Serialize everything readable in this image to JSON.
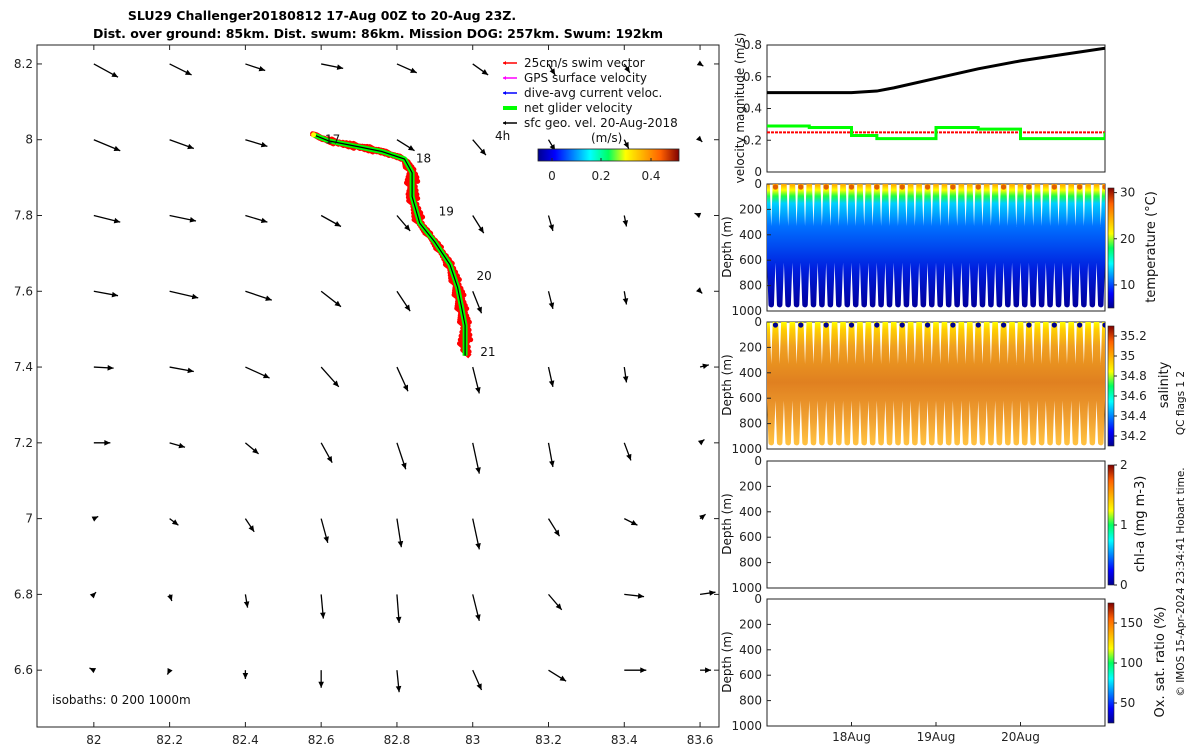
{
  "title": {
    "line1": "SLU29 Challenger20180812 17-Aug 00Z to 20-Aug 23Z.",
    "line2": "Dist. over ground: 85km. Dist. swum: 86km. Mission DOG: 257km. Swum: 192km"
  },
  "legend": {
    "items": [
      {
        "label": "25cm/s swim vector",
        "color": "#ff0000"
      },
      {
        "label": "GPS surface velocity",
        "color": "#ff00ff"
      },
      {
        "label": "dive-avg current veloc.",
        "color": "#0000ff"
      },
      {
        "label": "net glider velocity",
        "color": "#00ff00"
      },
      {
        "label": "sfc geo. vel. 20-Aug-2018",
        "color": "#000000"
      }
    ]
  },
  "map_texts": {
    "colorbar_unit": "(m/s)",
    "colorbar_ticks": [
      "0",
      "0.2",
      "0.4"
    ],
    "time_scale_label": "4h",
    "isobaths": "isobaths: 0   200  1000m",
    "day_labels": [
      "17",
      "18",
      "19",
      "20",
      "21"
    ]
  },
  "colors": {
    "track_red": "#ff0000",
    "net_green": "#00ff00",
    "track_black": "#000000",
    "arrows": "#000000"
  },
  "chart_data": [
    {
      "type": "line",
      "name": "glider-track-map",
      "xlabel": "",
      "ylabel": "",
      "xlim": [
        81.85,
        83.65
      ],
      "ylim": [
        6.45,
        8.25
      ],
      "xticks": [
        "82",
        "82.2",
        "82.4",
        "82.6",
        "82.8",
        "83",
        "83.2",
        "83.4",
        "83.6"
      ],
      "yticks": [
        "8.2",
        "8",
        "7.8",
        "7.6",
        "7.4",
        "7.2",
        "7",
        "6.8",
        "6.6"
      ],
      "track": {
        "x": [
          82.58,
          82.62,
          82.7,
          82.76,
          82.82,
          82.84,
          82.84,
          82.86,
          82.9,
          82.94,
          82.96,
          82.97,
          82.98,
          82.98
        ],
        "y": [
          8.013,
          7.997,
          7.981,
          7.969,
          7.949,
          7.913,
          7.85,
          7.78,
          7.73,
          7.67,
          7.61,
          7.56,
          7.51,
          7.43
        ]
      },
      "day_markers": [
        {
          "label": "17",
          "x": 82.61,
          "y": 8.0
        },
        {
          "label": "18",
          "x": 82.85,
          "y": 7.95
        },
        {
          "label": "19",
          "x": 82.91,
          "y": 7.81
        },
        {
          "label": "20",
          "x": 83.01,
          "y": 7.64
        },
        {
          "label": "21",
          "x": 83.02,
          "y": 7.44
        }
      ],
      "vector_grid": {
        "lon": [
          82.0,
          82.2,
          82.4,
          82.6,
          82.8,
          83.0,
          83.2,
          83.4,
          83.6
        ],
        "lat": [
          8.2,
          8.0,
          7.8,
          7.6,
          7.4,
          7.2,
          7.0,
          6.8,
          6.6
        ],
        "u": [
          [
            0.22,
            0.2,
            0.18,
            0.2,
            0.18,
            0.14,
            0.06,
            0.05,
            0.03
          ],
          [
            0.24,
            0.22,
            0.2,
            0.2,
            0.16,
            0.12,
            0.06,
            0.04,
            0.02
          ],
          [
            0.24,
            0.24,
            0.2,
            0.18,
            0.12,
            0.1,
            0.04,
            0.02,
            -0.05
          ],
          [
            0.22,
            0.26,
            0.24,
            0.18,
            0.12,
            0.08,
            0.04,
            0.02,
            0.02
          ],
          [
            0.18,
            0.22,
            0.22,
            0.16,
            0.1,
            0.06,
            0.04,
            0.02,
            0.08
          ],
          [
            0.15,
            0.14,
            0.12,
            0.1,
            0.08,
            0.06,
            0.04,
            0.06,
            0.04
          ],
          [
            0.04,
            0.08,
            0.08,
            0.06,
            0.04,
            0.06,
            0.1,
            0.12,
            0.05
          ],
          [
            0.02,
            0.02,
            0.02,
            0.02,
            0.02,
            0.06,
            0.12,
            0.18,
            0.14
          ],
          [
            -0.04,
            -0.02,
            0.0,
            0.0,
            0.02,
            0.08,
            0.16,
            0.2,
            0.1
          ]
        ],
        "v": [
          [
            -0.12,
            -0.1,
            -0.06,
            -0.04,
            -0.08,
            -0.1,
            -0.1,
            -0.08,
            -0.02
          ],
          [
            -0.1,
            -0.08,
            -0.06,
            -0.04,
            -0.1,
            -0.14,
            -0.1,
            -0.08,
            -0.02
          ],
          [
            -0.06,
            -0.05,
            -0.06,
            -0.1,
            -0.14,
            -0.16,
            -0.14,
            -0.1,
            0.02
          ],
          [
            -0.04,
            -0.06,
            -0.08,
            -0.14,
            -0.18,
            -0.2,
            -0.16,
            -0.12,
            -0.02
          ],
          [
            -0.01,
            -0.04,
            -0.1,
            -0.18,
            -0.22,
            -0.24,
            -0.18,
            -0.14,
            0.02
          ],
          [
            0.0,
            -0.04,
            -0.1,
            -0.18,
            -0.24,
            -0.28,
            -0.22,
            -0.16,
            0.03
          ],
          [
            0.02,
            -0.06,
            -0.12,
            -0.22,
            -0.26,
            -0.28,
            -0.16,
            -0.06,
            0.04
          ],
          [
            0.02,
            -0.06,
            -0.12,
            -0.22,
            -0.26,
            -0.24,
            -0.14,
            -0.02,
            0.02
          ],
          [
            0.02,
            -0.04,
            -0.08,
            -0.16,
            -0.2,
            -0.18,
            -0.1,
            0.0,
            0.0
          ]
        ]
      }
    },
    {
      "type": "line",
      "name": "velocity-magnitude",
      "ylabel": "velocity magnitude (m/s)",
      "xlabel": "",
      "ylim": [
        0,
        0.8
      ],
      "yticks": [
        "0",
        "0.2",
        "0.4",
        "0.6",
        "0.8"
      ],
      "x": [
        0,
        0.5,
        1.0,
        1.3,
        1.5,
        2.0,
        2.5,
        3.0,
        3.5,
        4.0
      ],
      "series": [
        {
          "values": [
            0.5,
            0.5,
            0.5,
            0.51,
            0.53,
            0.59,
            0.65,
            0.7,
            0.74,
            0.78
          ],
          "color": "#000000"
        },
        {
          "values": [
            0.25,
            0.25,
            0.25,
            0.25,
            0.25,
            0.25,
            0.25,
            0.25,
            0.25,
            0.25
          ],
          "color": "#ff0000"
        },
        {
          "values": [
            0.29,
            0.28,
            0.23,
            0.21,
            0.21,
            0.28,
            0.27,
            0.21,
            0.21,
            0.25
          ],
          "color": "#00ff00"
        }
      ]
    },
    {
      "type": "heatmap",
      "name": "temperature-section",
      "ylabel": "Depth (m)",
      "colorbar_label": "temperature (°C)",
      "colorbar_ticks": [
        "30",
        "20",
        "10"
      ],
      "colorbar_range": [
        5,
        31
      ],
      "ylim": [
        0,
        1000
      ],
      "yticks": [
        "0",
        "200",
        "400",
        "600",
        "800",
        "1000"
      ],
      "dives": 40,
      "max_depth": 950
    },
    {
      "type": "heatmap",
      "name": "salinity-section",
      "ylabel": "Depth (m)",
      "colorbar_label": "salinity",
      "colorbar_ticks": [
        "35.2",
        "35",
        "34.8",
        "34.6",
        "34.4",
        "34.2"
      ],
      "colorbar_range": [
        34.1,
        35.3
      ],
      "ylim": [
        0,
        1000
      ],
      "yticks": [
        "0",
        "200",
        "400",
        "600",
        "800",
        "1000"
      ],
      "dives": 40,
      "max_depth": 950
    },
    {
      "type": "heatmap",
      "name": "chla-section",
      "ylabel": "Depth (m)",
      "colorbar_label": "chl-a (mg m-3)",
      "colorbar_ticks": [
        "2",
        "1",
        "0"
      ],
      "colorbar_range": [
        0,
        2
      ],
      "ylim": [
        0,
        1000
      ],
      "yticks": [
        "0",
        "200",
        "400",
        "600",
        "800",
        "1000"
      ]
    },
    {
      "type": "heatmap",
      "name": "oxygen-section",
      "ylabel": "Depth (m)",
      "colorbar_label": "Ox. sat. ratio (%)",
      "colorbar_ticks": [
        "150",
        "100",
        "50"
      ],
      "colorbar_range": [
        25,
        175
      ],
      "ylim": [
        0,
        1000
      ],
      "yticks": [
        "0",
        "200",
        "400",
        "600",
        "800",
        "1000"
      ],
      "xticks": [
        "18Aug",
        "19Aug",
        "20Aug"
      ],
      "xlim": [
        "17-Aug",
        "21-Aug"
      ]
    }
  ],
  "side_texts": {
    "qc_flags": "QC flags 1  2",
    "copyright": "© IMOS 15-Apr-2024 23:34:41 Hobart time."
  }
}
